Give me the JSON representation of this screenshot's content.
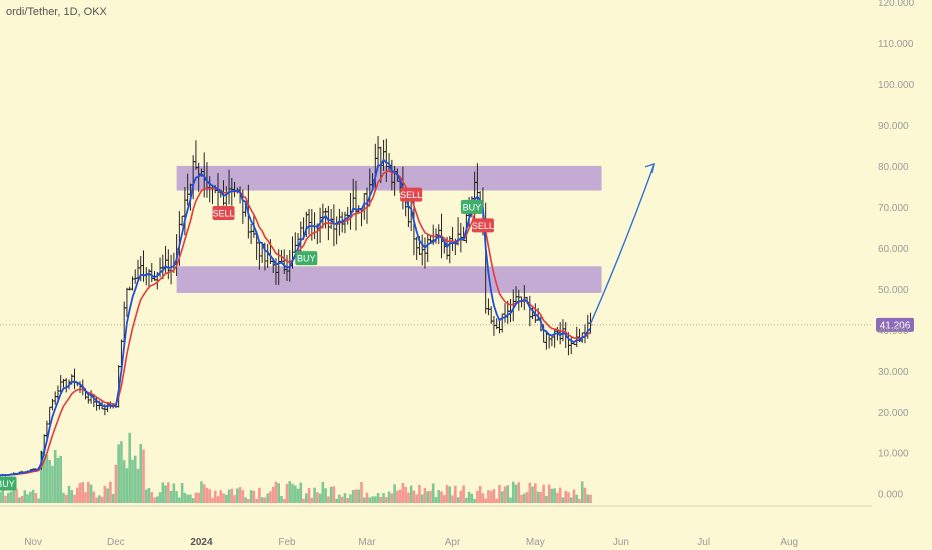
{
  "symbol_line": "ordi/Tether, 1D, OKX",
  "chart_data": {
    "type": "candlestick",
    "y_axis": {
      "ticks": [
        0,
        10,
        20,
        30,
        40,
        50,
        60,
        70,
        80,
        90,
        100,
        110,
        120
      ],
      "tick_labels": [
        "0.000",
        "10.000",
        "20.000",
        "30.000",
        "40.000",
        "50.000",
        "60.000",
        "70.000",
        "80.000",
        "90.000",
        "100.000",
        "110.000",
        "120.000"
      ],
      "range": [
        -3,
        120.5
      ]
    },
    "x_axis": {
      "start_date": "2023-10-20",
      "end_date": "2024-08-31",
      "ticks": [
        {
          "label": "Nov",
          "date": "2023-11-01"
        },
        {
          "label": "Dec",
          "date": "2023-12-01"
        },
        {
          "label": "2024",
          "date": "2024-01-01",
          "bold": true
        },
        {
          "label": "Feb",
          "date": "2024-02-01"
        },
        {
          "label": "Mar",
          "date": "2024-03-01"
        },
        {
          "label": "Apr",
          "date": "2024-04-01"
        },
        {
          "label": "May",
          "date": "2024-05-01"
        },
        {
          "label": "Jun",
          "date": "2024-06-01"
        },
        {
          "label": "Jul",
          "date": "2024-07-01"
        },
        {
          "label": "Aug",
          "date": "2024-08-01"
        }
      ]
    },
    "last_price": {
      "value": 41.206,
      "label": "41.206",
      "color": "#8e6bb8"
    },
    "zones": [
      {
        "y_low": 74,
        "y_high": 80,
        "x_start": "2023-12-23",
        "x_end": "2024-05-25",
        "color": "#b89dd4"
      },
      {
        "y_low": 49,
        "y_high": 55.5,
        "x_start": "2023-12-23",
        "x_end": "2024-05-25",
        "color": "#b89dd4"
      }
    ],
    "projection_arrow": {
      "points": [
        [
          "2024-05-21",
          41.5
        ],
        [
          "2024-06-02",
          60
        ],
        [
          "2024-06-13",
          80.5
        ]
      ],
      "color": "#2f6fd6"
    },
    "price_series": [
      [
        "2023-10-20",
        4.5
      ],
      [
        "2023-10-28",
        5.2
      ],
      [
        "2023-11-03",
        6.3
      ],
      [
        "2023-11-05",
        14
      ],
      [
        "2023-11-07",
        21
      ],
      [
        "2023-11-10",
        26
      ],
      [
        "2023-11-16",
        28
      ],
      [
        "2023-11-20",
        24
      ],
      [
        "2023-11-26",
        21
      ],
      [
        "2023-12-01",
        22
      ],
      [
        "2023-12-03",
        38
      ],
      [
        "2023-12-05",
        50
      ],
      [
        "2023-12-10",
        55
      ],
      [
        "2023-12-16",
        54
      ],
      [
        "2023-12-22",
        56
      ],
      [
        "2023-12-26",
        72
      ],
      [
        "2023-12-30",
        82
      ],
      [
        "2024-01-03",
        72
      ],
      [
        "2024-01-08",
        73
      ],
      [
        "2024-01-12",
        76
      ],
      [
        "2024-01-16",
        70
      ],
      [
        "2024-01-20",
        63
      ],
      [
        "2024-01-24",
        57
      ],
      [
        "2024-01-30",
        55
      ],
      [
        "2024-02-03",
        58
      ],
      [
        "2024-02-09",
        68
      ],
      [
        "2024-02-14",
        67
      ],
      [
        "2024-02-19",
        67
      ],
      [
        "2024-02-24",
        70
      ],
      [
        "2024-03-01",
        73
      ],
      [
        "2024-03-05",
        85
      ],
      [
        "2024-03-10",
        77
      ],
      [
        "2024-03-14",
        73
      ],
      [
        "2024-03-20",
        60
      ],
      [
        "2024-03-26",
        63
      ],
      [
        "2024-03-30",
        60
      ],
      [
        "2024-04-05",
        62
      ],
      [
        "2024-04-09",
        76
      ],
      [
        "2024-04-12",
        65
      ],
      [
        "2024-04-13",
        45
      ],
      [
        "2024-04-16",
        40
      ],
      [
        "2024-04-20",
        43
      ],
      [
        "2024-04-25",
        48
      ],
      [
        "2024-04-30",
        44
      ],
      [
        "2024-05-04",
        38
      ],
      [
        "2024-05-09",
        40
      ],
      [
        "2024-05-14",
        37
      ],
      [
        "2024-05-18",
        38.5
      ],
      [
        "2024-05-21",
        41.2
      ]
    ],
    "ema_fast_color": "#1f4fd8",
    "ema_slow_color": "#e23b3b",
    "candle_color": "#222222",
    "volume_colors": {
      "up": "#54b882",
      "down": "#f07a7a"
    },
    "signals": [
      {
        "date": "2023-10-22",
        "price": 2.5,
        "type": "buy",
        "text": "BUY"
      },
      {
        "date": "2024-01-09",
        "price": 68.5,
        "type": "sell",
        "text": "SELL"
      },
      {
        "date": "2024-02-08",
        "price": 57.5,
        "type": "buy",
        "text": "BUY"
      },
      {
        "date": "2024-03-17",
        "price": 73,
        "type": "sell",
        "text": "SELL"
      },
      {
        "date": "2024-04-08",
        "price": 70,
        "type": "buy",
        "text": "BUY"
      },
      {
        "date": "2024-04-12",
        "price": 65.5,
        "type": "sell",
        "text": "SELL"
      }
    ],
    "signal_colors": {
      "buy": "#3fae6a",
      "sell": "#e2474d"
    }
  }
}
